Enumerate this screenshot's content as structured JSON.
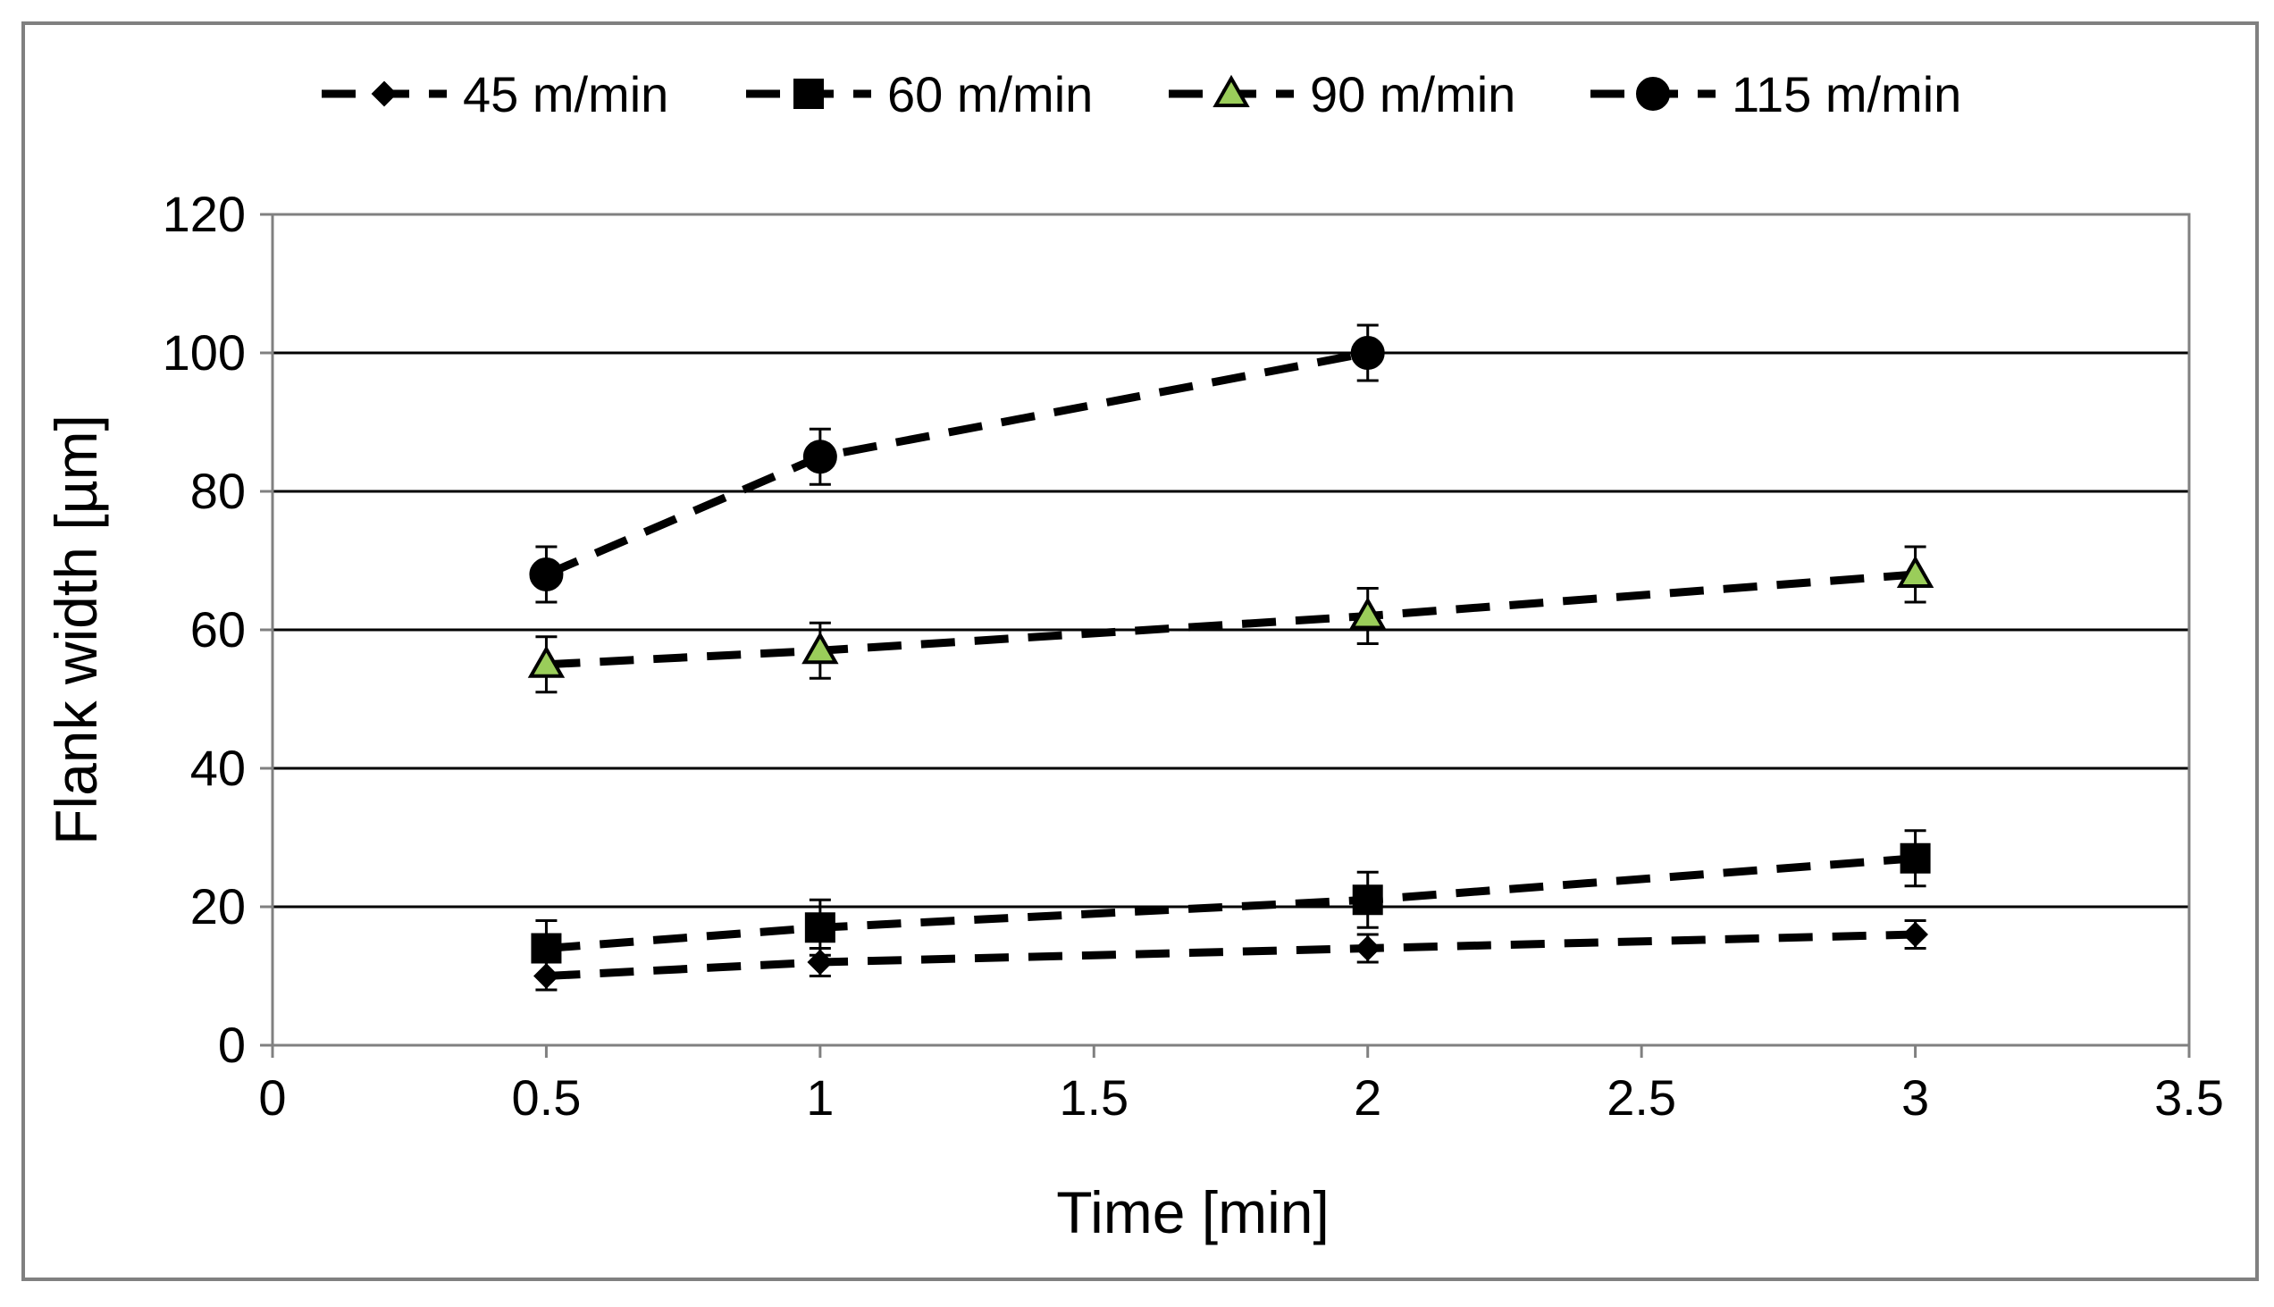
{
  "chart_data": {
    "type": "line",
    "title": "",
    "xlabel": "Time [min]",
    "ylabel": "Flank width [µm]",
    "xlim": [
      0,
      3.5
    ],
    "ylim": [
      0,
      120
    ],
    "xticks": [
      0,
      0.5,
      1,
      1.5,
      2,
      2.5,
      3,
      3.5
    ],
    "xtick_labels": [
      "0",
      "0.5",
      "1",
      "1.5",
      "2",
      "2.5",
      "3",
      "3.5"
    ],
    "yticks": [
      0,
      20,
      40,
      60,
      80,
      100,
      120
    ],
    "ytick_labels": [
      "0",
      "20",
      "40",
      "60",
      "80",
      "100",
      "120"
    ],
    "grid": "horizontal",
    "legend_position": "top",
    "series": [
      {
        "name": "45 m/min",
        "marker": "diamond",
        "color": "#000000",
        "marker_fill": "#000000",
        "x": [
          0.5,
          1,
          2,
          3
        ],
        "y": [
          10,
          12,
          14,
          16
        ],
        "error": [
          2,
          2,
          2,
          2
        ]
      },
      {
        "name": "60 m/min",
        "marker": "square",
        "color": "#000000",
        "marker_fill": "#000000",
        "x": [
          0.5,
          1,
          2,
          3
        ],
        "y": [
          14,
          17,
          21,
          27
        ],
        "error": [
          4,
          4,
          4,
          4
        ]
      },
      {
        "name": "90 m/min",
        "marker": "triangle",
        "color": "#000000",
        "marker_fill": "#9ACD5A",
        "x": [
          0.5,
          1,
          2,
          3
        ],
        "y": [
          55,
          57,
          62,
          68
        ],
        "error": [
          4,
          4,
          4,
          4
        ]
      },
      {
        "name": "115 m/min",
        "marker": "circle",
        "color": "#000000",
        "marker_fill": "#000000",
        "x": [
          0.5,
          1,
          2
        ],
        "y": [
          68,
          85,
          100
        ],
        "error": [
          4,
          4,
          4
        ]
      }
    ]
  }
}
